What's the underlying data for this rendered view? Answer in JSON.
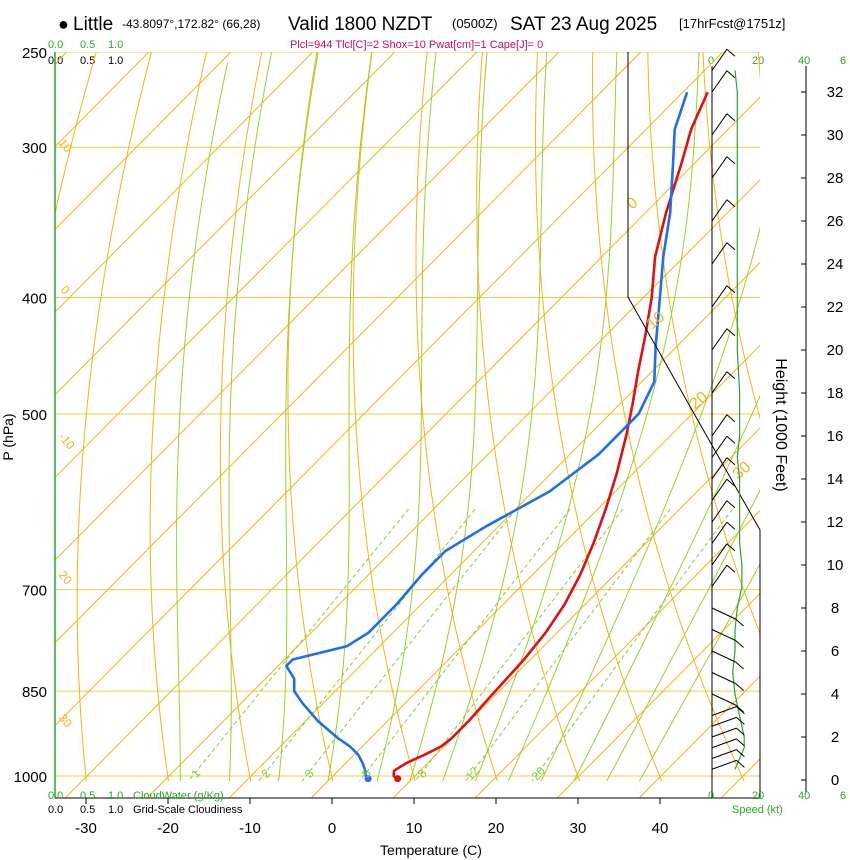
{
  "header": {
    "bullet": "●",
    "location": "Little",
    "coords": "-43.8097°,172.82° (66,28)",
    "valid": "Valid 1800 NZDT",
    "utc": "(0500Z)",
    "date": "SAT 23 Aug 2025",
    "forecast": "[17hrFcst@1751z]",
    "params": "Plcl=944 Tlcl[C]=2 Shox=10 Pwat[cm]=1 Cape[J]= 0"
  },
  "colors": {
    "temp": "#dd1111",
    "dewpoint": "#1f6fe6",
    "isotherm": "#f2b418",
    "dry_adiabat": "#f2b418",
    "moist_adiabat": "#9ad12b",
    "mixing_ratio": "#86c940",
    "isobar": "#e6cf4a",
    "axis_green": "#2aa52a",
    "params_text": "#c0105a"
  },
  "chart_data": {
    "type": "line",
    "title": "Skew-T sounding — Little, Valid 1800 NZDT SAT 23 Aug 2025",
    "xlabel": "Temperature (C)",
    "ylabel": "P (hPa)",
    "right_label": "Height (1000 Feet)",
    "x_ticks": [
      "-30",
      "-20",
      "-10",
      "0",
      "10",
      "20",
      "30",
      "40"
    ],
    "pressure_levels": [
      {
        "p": 250,
        "label": "250"
      },
      {
        "p": 300,
        "label": "300"
      },
      {
        "p": 400,
        "label": "400"
      },
      {
        "p": 500,
        "label": "500"
      },
      {
        "p": 700,
        "label": "700"
      },
      {
        "p": 850,
        "label": "850"
      },
      {
        "p": 1000,
        "label": "1000"
      }
    ],
    "height_ticks_kft": [
      "0",
      "2",
      "4",
      "6",
      "8",
      "10",
      "12",
      "14",
      "16",
      "18",
      "20",
      "22",
      "24",
      "26",
      "28",
      "30",
      "32"
    ],
    "series": [
      {
        "name": "Temperature",
        "points": [
          [
            1005,
            8.2
          ],
          [
            1000,
            7.4
          ],
          [
            990,
            6.8
          ],
          [
            975,
            7.4
          ],
          [
            960,
            8.6
          ],
          [
            945,
            9.6
          ],
          [
            930,
            9.9
          ],
          [
            900,
            9.9
          ],
          [
            860,
            9.6
          ],
          [
            830,
            9.4
          ],
          [
            800,
            9.2
          ],
          [
            760,
            8.6
          ],
          [
            720,
            7.5
          ],
          [
            680,
            5.8
          ],
          [
            640,
            3.6
          ],
          [
            600,
            1.0
          ],
          [
            560,
            -2.0
          ],
          [
            520,
            -5.5
          ],
          [
            490,
            -8.5
          ],
          [
            460,
            -11.8
          ],
          [
            430,
            -15.2
          ],
          [
            400,
            -19.0
          ],
          [
            370,
            -23.5
          ],
          [
            340,
            -27.5
          ],
          [
            310,
            -31.5
          ],
          [
            290,
            -34.5
          ],
          [
            270,
            -37.0
          ]
        ]
      },
      {
        "name": "Dewpoint",
        "points": [
          [
            1005,
            4.6
          ],
          [
            1000,
            4.0
          ],
          [
            990,
            3.3
          ],
          [
            975,
            2.0
          ],
          [
            960,
            0.5
          ],
          [
            945,
            -1.5
          ],
          [
            930,
            -4.0
          ],
          [
            900,
            -8.5
          ],
          [
            870,
            -12.5
          ],
          [
            850,
            -15.0
          ],
          [
            830,
            -16.5
          ],
          [
            810,
            -19.0
          ],
          [
            800,
            -19.0
          ],
          [
            790,
            -16.5
          ],
          [
            780,
            -14.0
          ],
          [
            760,
            -13.0
          ],
          [
            720,
            -13.0
          ],
          [
            680,
            -13.5
          ],
          [
            650,
            -13.5
          ],
          [
            620,
            -11.5
          ],
          [
            580,
            -8.0
          ],
          [
            540,
            -6.5
          ],
          [
            500,
            -6.5
          ],
          [
            470,
            -8.5
          ],
          [
            440,
            -12.5
          ],
          [
            400,
            -18.0
          ],
          [
            370,
            -22.5
          ],
          [
            340,
            -27.0
          ],
          [
            310,
            -32.5
          ],
          [
            290,
            -36.5
          ],
          [
            270,
            -39.5
          ]
        ]
      }
    ],
    "wind_speed_kt": [
      {
        "kft": 0.5,
        "speed": 10
      },
      {
        "kft": 1,
        "speed": 12
      },
      {
        "kft": 1.5,
        "speed": 14
      },
      {
        "kft": 2,
        "speed": 14
      },
      {
        "kft": 2.5,
        "speed": 13
      },
      {
        "kft": 3,
        "speed": 12
      },
      {
        "kft": 4,
        "speed": 10
      },
      {
        "kft": 5,
        "speed": 9
      },
      {
        "kft": 6,
        "speed": 10
      },
      {
        "kft": 7,
        "speed": 10
      },
      {
        "kft": 8,
        "speed": 11
      },
      {
        "kft": 9,
        "speed": 13
      },
      {
        "kft": 10,
        "speed": 13
      },
      {
        "kft": 11,
        "speed": 12
      },
      {
        "kft": 12,
        "speed": 12
      },
      {
        "kft": 13,
        "speed": 12
      },
      {
        "kft": 14,
        "speed": 12
      },
      {
        "kft": 15,
        "speed": 11
      },
      {
        "kft": 16,
        "speed": 12
      },
      {
        "kft": 18,
        "speed": 12
      },
      {
        "kft": 20,
        "speed": 11
      },
      {
        "kft": 22,
        "speed": 11
      },
      {
        "kft": 24,
        "speed": 11
      },
      {
        "kft": 26,
        "speed": 11
      },
      {
        "kft": 28,
        "speed": 11
      },
      {
        "kft": 30,
        "speed": 11
      },
      {
        "kft": 32,
        "speed": 11
      },
      {
        "kft": 33,
        "speed": 10
      }
    ],
    "mixing_ratio_labels": [
      "1",
      "2",
      "3",
      "5",
      "8",
      "12",
      "20"
    ],
    "dry_adiabat_labels": [
      "30",
      "20",
      "10",
      "0",
      "-10",
      "-20",
      "-30"
    ],
    "theta_e_labels": [
      "0",
      "10",
      "20",
      "30"
    ]
  },
  "scales": {
    "cloud_top": {
      "a": "0.0",
      "b": "0.5",
      "c": "1.0"
    },
    "cloud_top2": {
      "a": "0.0",
      "b": "0.5",
      "c": "1.0"
    },
    "cloud_bottom": {
      "a": "0.0",
      "b": "0.5",
      "c": "1.0",
      "label": "CloudWater (g/Kg)"
    },
    "cloud_bottom2": {
      "a": "0.0",
      "b": "0.5",
      "c": "1.0",
      "label": "Grid-Scale Cloudiness"
    },
    "speed_top": [
      "0",
      "20",
      "40",
      "6"
    ],
    "speed_bottom": [
      "0",
      "20",
      "40",
      "6"
    ],
    "speed_label": "Speed (kt)"
  }
}
